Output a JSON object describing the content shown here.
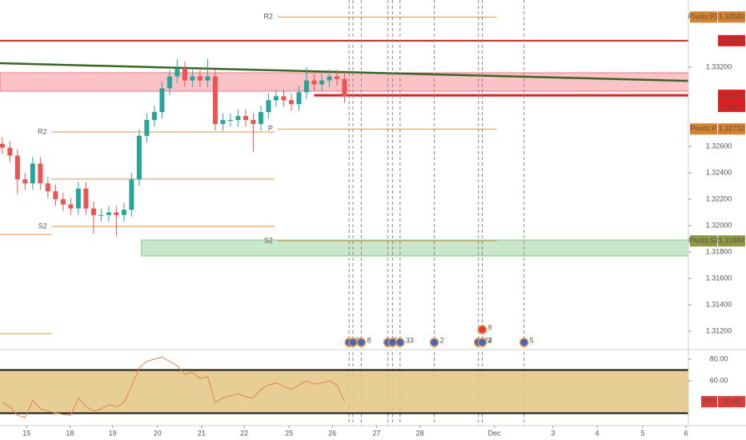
{
  "chart_data": [
    {
      "type": "candlestick",
      "open": [
        1.3262,
        1.3259,
        1.3253,
        1.3235,
        1.3232,
        1.3247,
        1.3232,
        1.3226,
        1.322,
        1.3216,
        1.3213,
        1.3228,
        1.3213,
        1.3208,
        1.3208,
        1.321,
        1.3208,
        1.3212,
        1.3235,
        1.3268,
        1.328,
        1.3286,
        1.3304,
        1.3313,
        1.3319,
        1.331,
        1.3313,
        1.331,
        1.3313,
        1.3277,
        1.328,
        1.328,
        1.3283,
        1.328,
        1.3277,
        1.3286,
        1.3295,
        1.3298,
        1.3295,
        1.3292,
        1.3301,
        1.331,
        1.3307,
        1.331,
        1.3313,
        1.3311
      ],
      "high": [
        1.3267,
        1.3264,
        1.3258,
        1.324,
        1.3252,
        1.3252,
        1.3237,
        1.3231,
        1.3225,
        1.3221,
        1.3233,
        1.3233,
        1.3218,
        1.3213,
        1.3215,
        1.3215,
        1.3217,
        1.324,
        1.3273,
        1.3285,
        1.3291,
        1.3309,
        1.3318,
        1.3326,
        1.3324,
        1.3318,
        1.3318,
        1.3326,
        1.3318,
        1.3285,
        1.3285,
        1.3288,
        1.3288,
        1.3285,
        1.3291,
        1.33,
        1.3303,
        1.3303,
        1.33,
        1.3306,
        1.332,
        1.3315,
        1.3315,
        1.3318,
        1.3318,
        1.3316
      ],
      "low": [
        1.3254,
        1.3248,
        1.3224,
        1.3227,
        1.3227,
        1.3227,
        1.3221,
        1.3215,
        1.3211,
        1.3208,
        1.3208,
        1.3208,
        1.3194,
        1.3203,
        1.3203,
        1.3192,
        1.3203,
        1.3207,
        1.323,
        1.3263,
        1.3275,
        1.3281,
        1.3299,
        1.3308,
        1.3305,
        1.3305,
        1.3305,
        1.3305,
        1.3272,
        1.3272,
        1.3275,
        1.3275,
        1.3275,
        1.3256,
        1.3272,
        1.3281,
        1.329,
        1.329,
        1.3287,
        1.3287,
        1.3296,
        1.3302,
        1.3302,
        1.3305,
        1.3306,
        1.3293
      ],
      "close": [
        1.3259,
        1.3253,
        1.3235,
        1.3232,
        1.3247,
        1.3232,
        1.3226,
        1.322,
        1.3216,
        1.3213,
        1.3228,
        1.3213,
        1.3208,
        1.3208,
        1.321,
        1.3208,
        1.3212,
        1.3235,
        1.3268,
        1.328,
        1.3286,
        1.3304,
        1.3313,
        1.3319,
        1.331,
        1.3313,
        1.331,
        1.3313,
        1.3277,
        1.328,
        1.328,
        1.3283,
        1.328,
        1.3277,
        1.3286,
        1.3295,
        1.3298,
        1.3295,
        1.3292,
        1.3301,
        1.331,
        1.3307,
        1.331,
        1.3313,
        1.3311,
        1.3298
      ],
      "up_color": "#26a69a",
      "down_color": "#ef5350",
      "xlim": [
        -0.3,
        90.2
      ],
      "ylim": [
        1.31073,
        1.33709
      ],
      "yticks": [
        {
          "value": 1.332,
          "label": "1.33200"
        },
        {
          "value": 1.326,
          "label": "1.32600"
        },
        {
          "value": 1.324,
          "label": "1.32400"
        },
        {
          "value": 1.322,
          "label": "1.32200"
        },
        {
          "value": 1.32,
          "label": "1.32000"
        },
        {
          "value": 1.318,
          "label": "1.31800"
        },
        {
          "value": 1.316,
          "label": "1.31600"
        },
        {
          "value": 1.314,
          "label": "1.31400"
        },
        {
          "value": 1.312,
          "label": "1.31200"
        }
      ],
      "zones": [
        {
          "from": 1.33018,
          "to": 1.33158,
          "start": -0.3,
          "color": "#f23645"
        },
        {
          "from": 1.3177,
          "to": 1.31891,
          "start": 18.3,
          "color": "#4caf50"
        }
      ],
      "trendline": {
        "x": [
          -0.3,
          93.7
        ],
        "y": [
          1.3323,
          1.33091
        ],
        "color": "#33691e"
      },
      "lines": [
        {
          "value": 1.33401,
          "start": -0.3,
          "color": "#e01e1e",
          "width": 2
        },
        {
          "value": 1.32987,
          "start": 41,
          "color": "#e01e1e",
          "width": 3
        }
      ],
      "pivot_color": "#e8913a",
      "pivots": [
        {
          "label": "R2",
          "value": 1.3358,
          "start": 36.2,
          "end": 65
        },
        {
          "label": "P",
          "value": 1.32732,
          "start": 36.2,
          "end": 65
        },
        {
          "label": "S2",
          "value": 1.31884,
          "start": 36.2,
          "end": 65
        },
        {
          "label": "R2",
          "value": 1.32709,
          "start": 6.5,
          "end": 35.8
        },
        {
          "value": 1.32352,
          "start": 6.5,
          "end": 35.8
        },
        {
          "label": "S2",
          "value": 1.31994,
          "start": 6.5,
          "end": 35.8
        },
        {
          "value": 1.31933,
          "start": -0.3,
          "end": 6.5
        },
        {
          "value": 1.31182,
          "start": -0.3,
          "end": 6.5
        }
      ],
      "badges": [
        {
          "name": "Pivots:R2",
          "value": 1.3358,
          "label": "1.33580",
          "color": "#d9822b"
        },
        {
          "value": 1.33401,
          "label": "1.33401",
          "color": "#e01e1e"
        },
        {
          "value": 1.32987,
          "label": "1.32987",
          "color": "#e01e1e"
        },
        {
          "value": 1.32976,
          "label": "1.32976",
          "color": "#e01e1e"
        },
        {
          "name": "Pivots:P",
          "value": 1.32732,
          "label": "1.32732",
          "color": "#d9822b"
        },
        {
          "name": "Pivots:S2",
          "value": 1.31884,
          "label": "1.31884",
          "color": "#8f9a3f"
        }
      ],
      "countdown": "12:01",
      "events": [
        {
          "x": 45.6,
          "label": "8"
        },
        {
          "x": 46.1,
          "label": "2"
        },
        {
          "x": 47.2,
          "label": "8"
        },
        {
          "x": 50.7,
          "label": "5"
        },
        {
          "x": 51.3,
          "label": "3"
        },
        {
          "x": 52.3,
          "label": "33"
        },
        {
          "x": 56.8,
          "label": "2"
        },
        {
          "x": 62.6,
          "label": "24"
        },
        {
          "x": 63.1,
          "label": "2"
        },
        {
          "x": 63.1,
          "label": "9",
          "row": 1
        },
        {
          "x": 68.6,
          "label": "5"
        }
      ]
    },
    {
      "type": "line",
      "series": [
        {
          "name": "RSI",
          "color": "#e0824a",
          "values": [
            40,
            36,
            28,
            26,
            42,
            34,
            32,
            30,
            29,
            28,
            44,
            36,
            32,
            34,
            38,
            36,
            40,
            55,
            72,
            78,
            80,
            82,
            78,
            74,
            66,
            68,
            62,
            64,
            40,
            44,
            46,
            48,
            45,
            44,
            52,
            56,
            58,
            55,
            52,
            56,
            60,
            57,
            58,
            60,
            56,
            40.68
          ]
        }
      ],
      "xlim": [
        -0.3,
        90.2
      ],
      "ylim": [
        20,
        86.7
      ],
      "yticks": [
        {
          "value": 80,
          "label": "80.00"
        },
        {
          "value": 60,
          "label": "60.00"
        }
      ],
      "bands": [
        70,
        30
      ],
      "band_color": "#e3c98a",
      "xticks": [
        {
          "value": 3.2,
          "label": "15"
        },
        {
          "value": 8.9,
          "label": "18"
        },
        {
          "value": 14.5,
          "label": "19"
        },
        {
          "value": 20.4,
          "label": "20"
        },
        {
          "value": 26.2,
          "label": "21"
        },
        {
          "value": 31.8,
          "label": "22"
        },
        {
          "value": 37.7,
          "label": "25"
        },
        {
          "value": 43.4,
          "label": "26"
        },
        {
          "value": 49.2,
          "label": "27"
        },
        {
          "value": 54.9,
          "label": "28"
        },
        {
          "value": 64.7,
          "label": "Dec"
        },
        {
          "value": 72.4,
          "label": "3"
        },
        {
          "value": 78.2,
          "label": "4"
        },
        {
          "value": 84.2,
          "label": "5"
        },
        {
          "value": 89.9,
          "label": "6"
        }
      ]
    }
  ]
}
